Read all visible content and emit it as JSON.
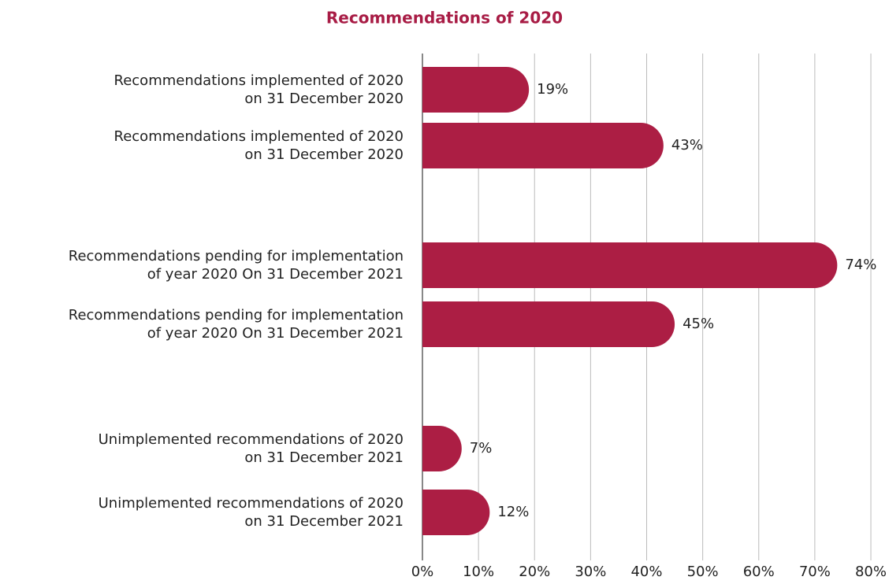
{
  "chart_data": {
    "type": "bar",
    "orientation": "horizontal",
    "title": "Recommendations of 2020",
    "categories": [
      "Recommendations implemented of 2020\non 31 December 2020",
      "Recommendations implemented of 2020\non 31 December 2020",
      "Recommendations pending for implementation\nof year 2020 On 31 December 2021",
      "Recommendations pending for implementation\nof year 2020 On 31 December 2021",
      "Unimplemented recommendations of 2020\non 31 December 2021",
      "Unimplemented recommendations of 2020\non 31 December 2021"
    ],
    "values": [
      19,
      43,
      74,
      45,
      7,
      12
    ],
    "value_labels": [
      "19%",
      "43%",
      "74%",
      "45%",
      "7%",
      "12%"
    ],
    "color": "#ac1e44",
    "xlim": [
      0,
      80
    ],
    "xticks": [
      {
        "value": 0,
        "label": "0%"
      },
      {
        "value": 10,
        "label": "10%"
      },
      {
        "value": 20,
        "label": "20%"
      },
      {
        "value": 30,
        "label": "30%"
      },
      {
        "value": 40,
        "label": "40%"
      },
      {
        "value": 50,
        "label": "50%"
      },
      {
        "value": 60,
        "label": "60%"
      },
      {
        "value": 70,
        "label": "70%"
      },
      {
        "value": 80,
        "label": "80%"
      }
    ],
    "grid": true
  }
}
